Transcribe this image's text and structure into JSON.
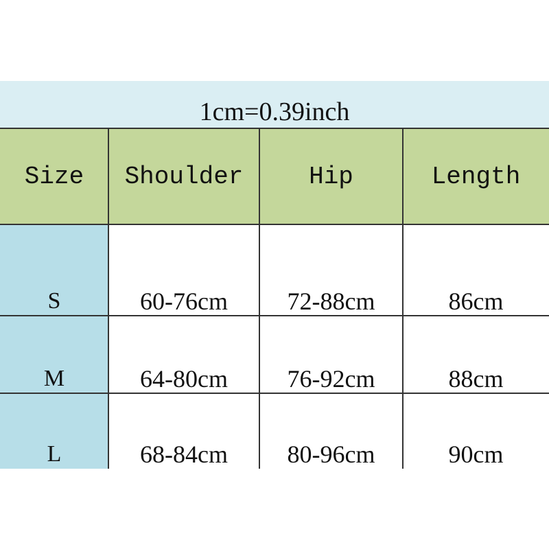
{
  "conversion_note": "1cm=0.39inch",
  "headers": [
    "Size",
    "Shoulder",
    "Hip",
    "Length"
  ],
  "rows": [
    {
      "size": "S",
      "shoulder": "60-76cm",
      "hip": "72-88cm",
      "length": "86cm"
    },
    {
      "size": "M",
      "shoulder": "64-80cm",
      "hip": "76-92cm",
      "length": "88cm"
    },
    {
      "size": "L",
      "shoulder": "68-84cm",
      "hip": "80-96cm",
      "length": "90cm"
    }
  ],
  "colors": {
    "title_band": "#daeef3",
    "header": "#c4d79b",
    "size_column": "#b7dee8"
  }
}
